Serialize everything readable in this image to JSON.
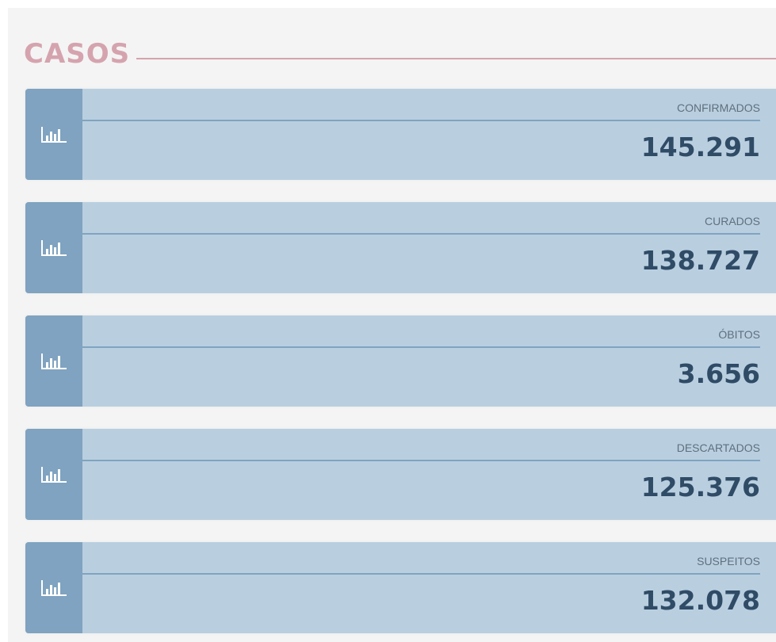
{
  "title": "CASOS",
  "cards": [
    {
      "label": "CONFIRMADOS",
      "value": "145.291"
    },
    {
      "label": "CURADOS",
      "value": "138.727"
    },
    {
      "label": "ÓBITOS",
      "value": "3.656"
    },
    {
      "label": "DESCARTADOS",
      "value": "125.376"
    },
    {
      "label": "SUSPEITOS",
      "value": "132.078"
    }
  ]
}
